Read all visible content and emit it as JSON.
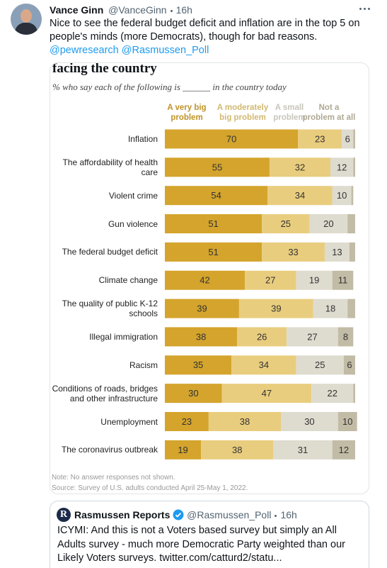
{
  "tweet": {
    "author": {
      "name": "Vance Ginn",
      "handle": "@VanceGinn"
    },
    "time": "16h",
    "text": "Nice to see the federal budget deficit and inflation are in the top 5 on people's minds (more Democrats), though for bad reasons.",
    "mentions": [
      "@pewresearch",
      "@Rasmussen_Poll"
    ]
  },
  "chart_data": {
    "type": "bar",
    "orientation": "horizontal",
    "stacked": true,
    "title": "facing the country",
    "subtitle": "% who say each of the following is ______ in the country today",
    "categories": [
      "Inflation",
      "The affordability of health care",
      "Violent crime",
      "Gun violence",
      "The federal budget deficit",
      "Climate change",
      "The quality of public K-12 schools",
      "Illegal immigration",
      "Racism",
      "Conditions of roads, bridges and other infrastructure",
      "Unemployment",
      "The coronavirus outbreak"
    ],
    "series": [
      {
        "name": "A very big problem",
        "color": "#d4a42c",
        "values": [
          70,
          55,
          54,
          51,
          51,
          42,
          39,
          38,
          35,
          30,
          23,
          19
        ]
      },
      {
        "name": "A moderately big problem",
        "color": "#e9cd7e",
        "values": [
          23,
          32,
          34,
          25,
          33,
          27,
          39,
          26,
          34,
          47,
          38,
          38
        ]
      },
      {
        "name": "A small problem",
        "color": "#dedbcf",
        "values": [
          6,
          12,
          10,
          20,
          13,
          19,
          18,
          27,
          25,
          22,
          30,
          31
        ]
      },
      {
        "name": "Not a problem at all",
        "color": "#c2bba5",
        "values": [
          1,
          1,
          1,
          4,
          3,
          11,
          4,
          8,
          6,
          1,
          10,
          12
        ]
      }
    ],
    "note": "Note: No answer responses not shown.",
    "source": "Source: Survey of U.S. adults conducted April 25-May 1, 2022."
  },
  "quote": {
    "logo": "R",
    "name": "Rasmussen Reports",
    "handle": "@Rasmussen_Poll",
    "time": "16h",
    "text": "ICYMI: And this is not a Voters based survey but simply an All Adults survey - much more Democratic Party weighted than our Likely Voters surveys. twitter.com/catturd2/statu..."
  }
}
